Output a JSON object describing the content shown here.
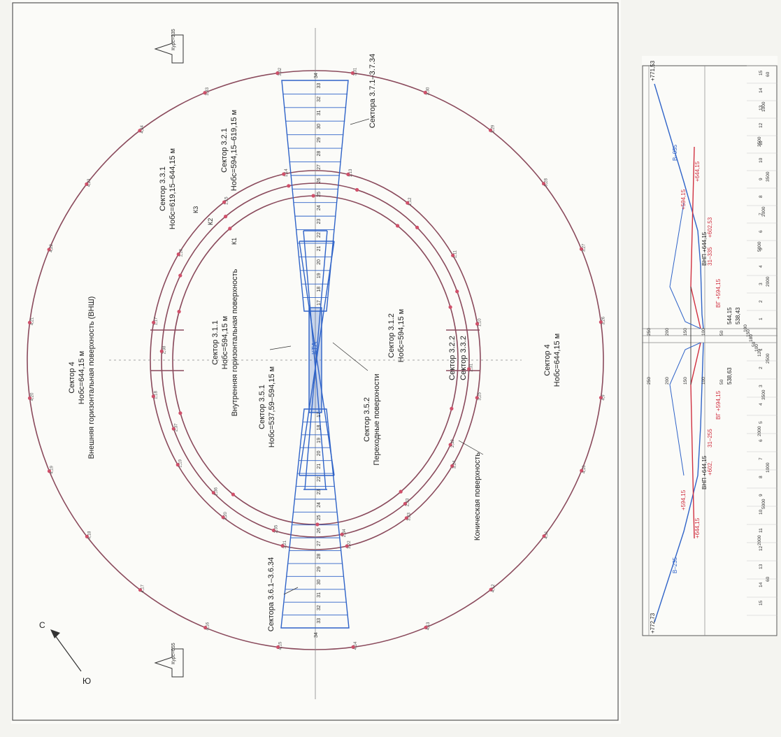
{
  "plan": {
    "north_arrow": "С",
    "south_arrow": "Ю",
    "course_top": "Курс=235",
    "course_bottom": "Курс=055",
    "runway_label": "КТА",
    "outer_label": {
      "sector": "Сектор 4",
      "height": "Нобс=644,15 м",
      "name": "Внешняя горизонтальная поверхность (ВНШ)"
    },
    "right_outer_label": {
      "sector": "Сектор 4",
      "height": "Нобс=644,15 м"
    },
    "inner_label": {
      "sector": "Сектор 3.1.1",
      "height": "Нобс=594,15 м",
      "name": "Внутренняя горизонтальная поверхность"
    },
    "inner_right_label": {
      "sector": "Сектор 3.1.2",
      "height": "Нобс=594,15 м"
    },
    "sector_321": {
      "sector": "Сектор 3.2.1",
      "height": "Нобс=594,15–619,15 м"
    },
    "sector_331": {
      "sector": "Сектор 3.3.1",
      "height": "Нобс=619,15–644,15 м"
    },
    "sector_351": {
      "sector": "Сектор 3.5.1",
      "height": "Нобс=537,59–594,15 м"
    },
    "sector_352": {
      "sector": "Сектор 3.5.2",
      "name": "Переходные поверхности"
    },
    "sector_322": "Сектор 3.2.2",
    "sector_332": "Сектор 3.3.2",
    "sector_37": "Сектора 3.7.1–3.7.34",
    "sector_36": "Сектора 3.6.1–3.6.34",
    "conical": "Коническая поверхность",
    "k_labels": [
      "К1",
      "К2",
      "К3"
    ],
    "strip_numbers": [
      "1",
      "2",
      "3",
      "4",
      "5",
      "6",
      "7",
      "8",
      "9",
      "10",
      "11",
      "12",
      "13",
      "14",
      "15",
      "16",
      "17",
      "18",
      "19",
      "20",
      "21",
      "22",
      "23",
      "24",
      "25",
      "26",
      "27",
      "28",
      "29",
      "30",
      "31",
      "32",
      "33",
      "34"
    ],
    "point_labels": [
      "4,9",
      "4,10",
      "4,11",
      "4,12",
      "4,13",
      "4,14",
      "4,15",
      "4,16",
      "4,17",
      "4,18",
      "4,19",
      "4,20",
      "4,21",
      "4,22",
      "4,23",
      "4,24",
      "3,33",
      "3,32",
      "3,31",
      "3,30",
      "3,29",
      "3,28",
      "3,27",
      "3,26",
      "3,25",
      "3,24",
      "3,23",
      "3,22",
      "3,21",
      "3,20",
      "1,19",
      "1,18",
      "1,17",
      "1,16",
      "1,15",
      "1,14",
      "1,13",
      "1,12",
      "1,11",
      "1,10",
      "2,31",
      "2,32",
      "2,33",
      "2,34",
      "2,35",
      "2,36",
      "2,37",
      "2,38"
    ]
  },
  "profile": {
    "top_value": "+771,53",
    "bottom_value": "+772,73",
    "top_slope": "В–055",
    "bottom_slope": "В–235",
    "vnp_top": "ВНП +644,15",
    "vnp_bottom": "ВНП +644,15",
    "vp_top": "ВГ +594,15",
    "vp_bottom": "ВГ +594,15",
    "red_labels": [
      "+644,15",
      "+602,53",
      "31–335",
      "+594,15",
      "+602,",
      "31–255",
      "+644,15",
      "+594,15"
    ],
    "center_values": [
      "544,15",
      "538,43",
      "538,63"
    ],
    "scale_upper": [
      "250",
      "200",
      "150",
      "100",
      "50"
    ],
    "scale_lower": [
      "250",
      "200",
      "150",
      "100",
      "50"
    ],
    "axis_top": [
      "15",
      "14",
      "13",
      "12",
      "11",
      "10",
      "9",
      "8",
      "7",
      "6",
      "5",
      "4",
      "3",
      "2",
      "1"
    ],
    "axis_bottom": [
      "1",
      "2",
      "3",
      "4",
      "5",
      "6",
      "7",
      "8",
      "9",
      "10",
      "11",
      "12",
      "13",
      "14",
      "15"
    ],
    "dims_top": [
      "60",
      "1000",
      "2500",
      "3500",
      "2000",
      "5000",
      "2000"
    ],
    "dims_bottom": [
      "2500",
      "3500",
      "2000",
      "1000",
      "5000",
      "2000",
      "60"
    ],
    "small_dims": [
      "100",
      "150",
      "180",
      "50",
      "100",
      "120"
    ]
  },
  "colors": {
    "frame": "#555555",
    "circle": "#8a4a5c",
    "points": "#d0506a",
    "blue": "#2f63c8",
    "red": "#d03040",
    "text": "#222222"
  }
}
